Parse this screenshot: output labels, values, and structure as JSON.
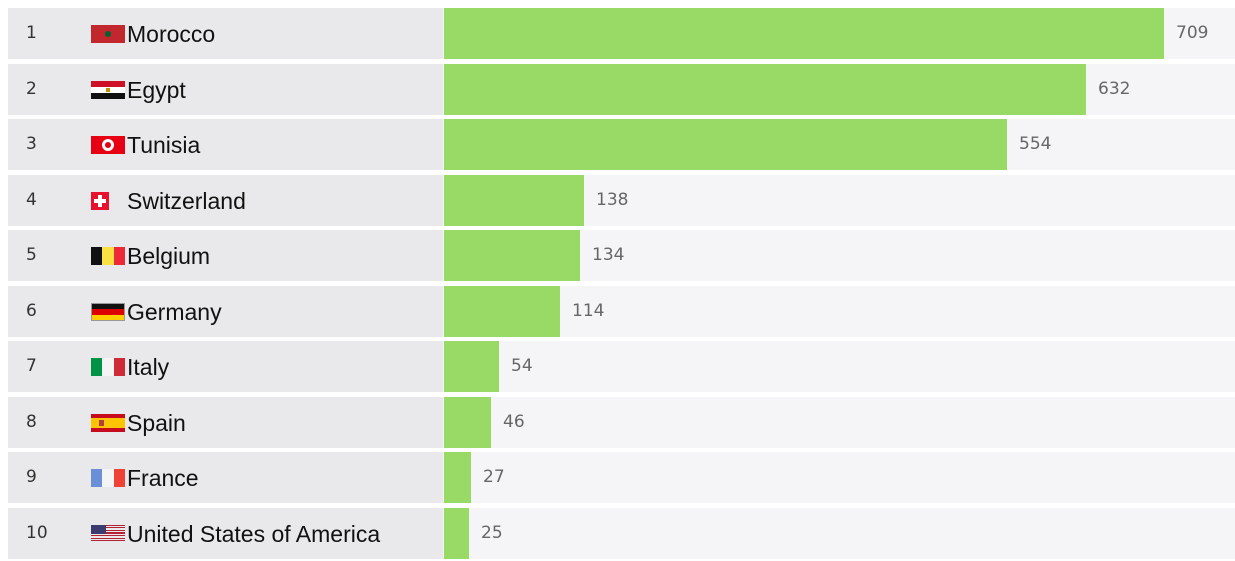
{
  "chart_data": {
    "type": "bar",
    "orientation": "horizontal",
    "ranks": [
      "1",
      "2",
      "3",
      "4",
      "5",
      "6",
      "7",
      "8",
      "9",
      "10"
    ],
    "categories": [
      "Morocco",
      "Egypt",
      "Tunisia",
      "Switzerland",
      "Belgium",
      "Germany",
      "Italy",
      "Spain",
      "France",
      "United States of America"
    ],
    "values": [
      709,
      632,
      554,
      138,
      134,
      114,
      54,
      46,
      27,
      25
    ],
    "flag_icons": [
      "morocco-flag-icon",
      "egypt-flag-icon",
      "tunisia-flag-icon",
      "switzerland-flag-icon",
      "belgium-flag-icon",
      "germany-flag-icon",
      "italy-flag-icon",
      "spain-flag-icon",
      "france-flag-icon",
      "usa-flag-icon"
    ],
    "title": "",
    "xlabel": "",
    "ylabel": "",
    "xlim": [
      0,
      780
    ],
    "bar_color": "#99d966",
    "grid": false
  }
}
